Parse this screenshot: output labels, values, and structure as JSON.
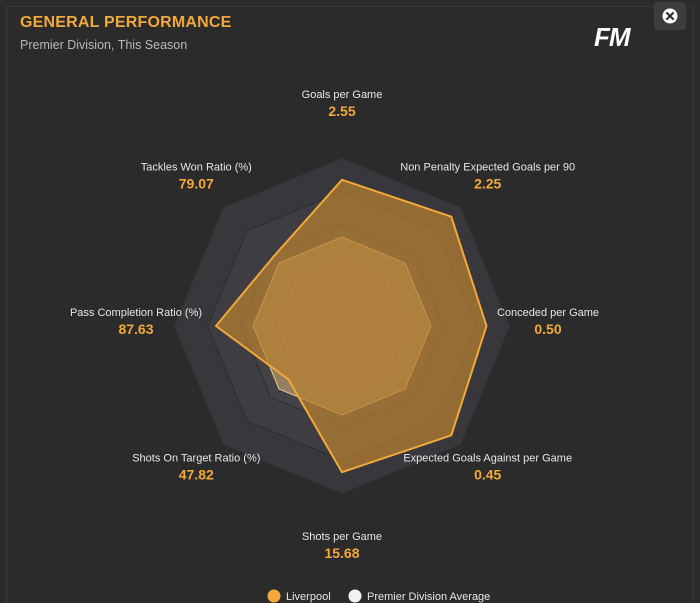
{
  "header": {
    "title": "GENERAL PERFORMANCE",
    "subtitle": "Premier Division, This Season",
    "logo_text": "FM",
    "close_icon": "close-icon"
  },
  "colors": {
    "accent": "#f3a83a",
    "team_fill": "#b9802f",
    "average_fill": "#d8b27a",
    "ring_outer": "#3a3a3e",
    "ring_inner": "#46464a"
  },
  "chart_data": {
    "type": "radar",
    "axes": [
      {
        "label": "Goals per Game",
        "value": "2.55"
      },
      {
        "label": "Non Penalty Expected Goals per 90",
        "value": "2.25"
      },
      {
        "label": "Conceded per Game",
        "value": "0.50"
      },
      {
        "label": "Expected Goals Against per Game",
        "value": "0.45"
      },
      {
        "label": "Shots per Game",
        "value": "15.68"
      },
      {
        "label": "Shots On Target Ratio (%)",
        "value": "47.82"
      },
      {
        "label": "Pass Completion Ratio (%)",
        "value": "87.63"
      },
      {
        "label": "Tackles Won Ratio (%)",
        "value": "79.07"
      }
    ],
    "series": [
      {
        "name": "Liverpool",
        "color": "#f3a83a",
        "levels": [
          0.87,
          0.92,
          0.86,
          0.92,
          0.87,
          0.45,
          0.75,
          0.58
        ]
      },
      {
        "name": "Premier Division Average",
        "color": "#f2f2f2",
        "levels": [
          0.53,
          0.53,
          0.53,
          0.53,
          0.53,
          0.53,
          0.53,
          0.53
        ]
      }
    ],
    "rings": 5,
    "legend_position": "bottom"
  }
}
